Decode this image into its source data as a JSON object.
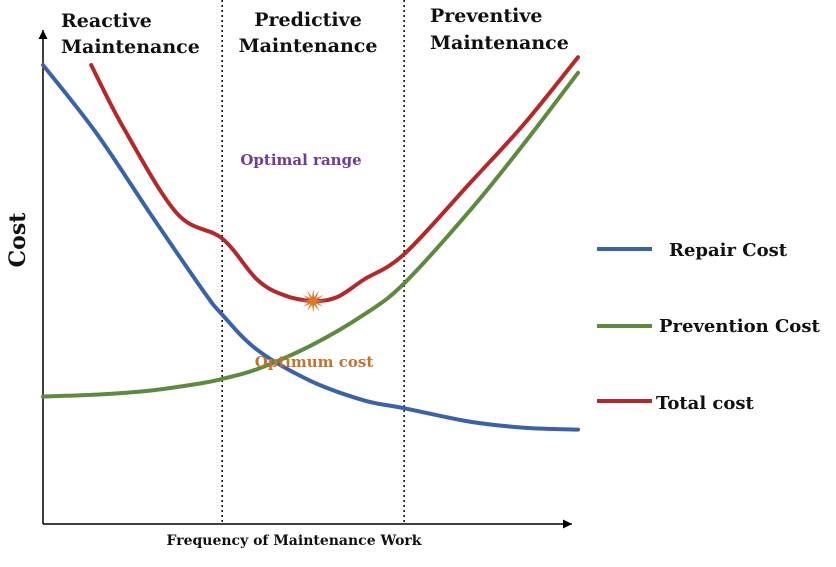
{
  "chart_data": {
    "type": "line",
    "title": "",
    "xlabel": "Frequency of Maintenance Work",
    "ylabel": "Cost",
    "x_ticks": "none",
    "y_ticks": "none",
    "xlim": [
      0,
      100
    ],
    "ylim": [
      0,
      100
    ],
    "grid": false,
    "legend_position": "right",
    "regions": [
      {
        "label_line1": "Reactive",
        "label_line2": "Maintenance",
        "x_start": 0,
        "x_end": 33.5
      },
      {
        "label_line1": "Predictive",
        "label_line2": "Maintenance",
        "x_start": 33.5,
        "x_end": 67.5
      },
      {
        "label_line1": "Preventive",
        "label_line2": "Maintenance",
        "x_start": 67.5,
        "x_end": 100
      }
    ],
    "region_dividers_x": [
      33.5,
      67.5
    ],
    "annotations": [
      {
        "text": "Optimal range",
        "color": "#6a3d9a"
      },
      {
        "text": "Optimum cost",
        "color": "#c0752f",
        "point": {
          "x": 50.5,
          "y": 39.5
        }
      }
    ],
    "optimum_marker_color": "#d9782d",
    "series": [
      {
        "name": "Repair Cost",
        "color": "#3a62a8",
        "x": [
          0,
          10,
          20,
          30,
          33.5,
          40,
          50,
          60,
          67.5,
          80,
          90,
          100
        ],
        "y": [
          100,
          82.5,
          62,
          42,
          36,
          27,
          19,
          14,
          12,
          8.5,
          7,
          6.5
        ]
      },
      {
        "name": "Prevention Cost",
        "color": "#5d8a3f",
        "x": [
          0,
          10,
          20,
          30,
          33.5,
          40,
          50,
          60,
          67.5,
          80,
          90,
          100
        ],
        "y": [
          15,
          15.5,
          16.5,
          18.5,
          19.5,
          22,
          28,
          36,
          44,
          63,
          80,
          98
        ]
      },
      {
        "name": "Total cost",
        "color": "#b5282a",
        "x": [
          9,
          15,
          25,
          33.5,
          40,
          45,
          50.5,
          55,
          60,
          67.5,
          80,
          90,
          100
        ],
        "y": [
          100,
          84,
          62,
          55.5,
          45,
          41,
          39.5,
          40.5,
          45,
          51.5,
          70,
          85,
          102
        ]
      }
    ]
  }
}
